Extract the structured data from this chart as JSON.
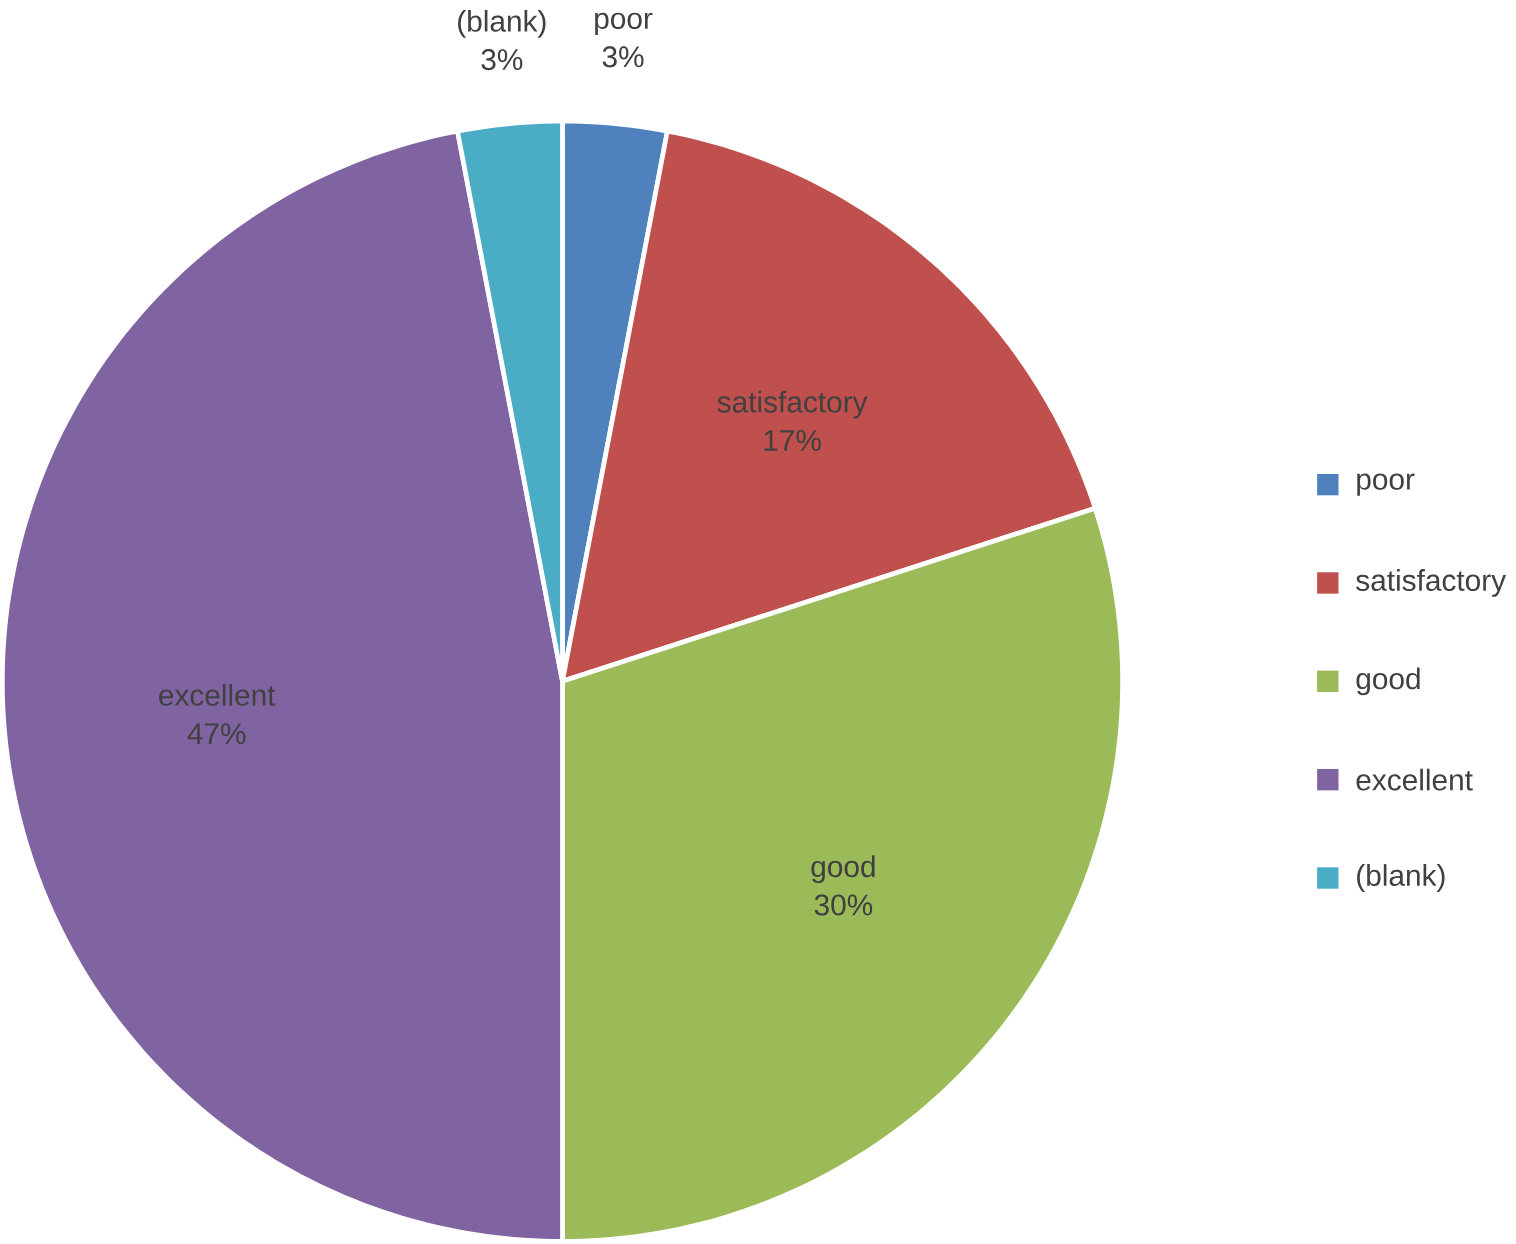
{
  "chart_data": {
    "type": "pie",
    "categories": [
      "poor",
      "satisfactory",
      "good",
      "excellent",
      "(blank)"
    ],
    "values": [
      3,
      17,
      30,
      47,
      3
    ],
    "value_labels": [
      "3%",
      "17%",
      "30%",
      "47%",
      "3%"
    ],
    "colors": [
      "#4f81bd",
      "#c0504d",
      "#9bbb59",
      "#8064a2",
      "#4bacc6"
    ],
    "legend": "right"
  }
}
